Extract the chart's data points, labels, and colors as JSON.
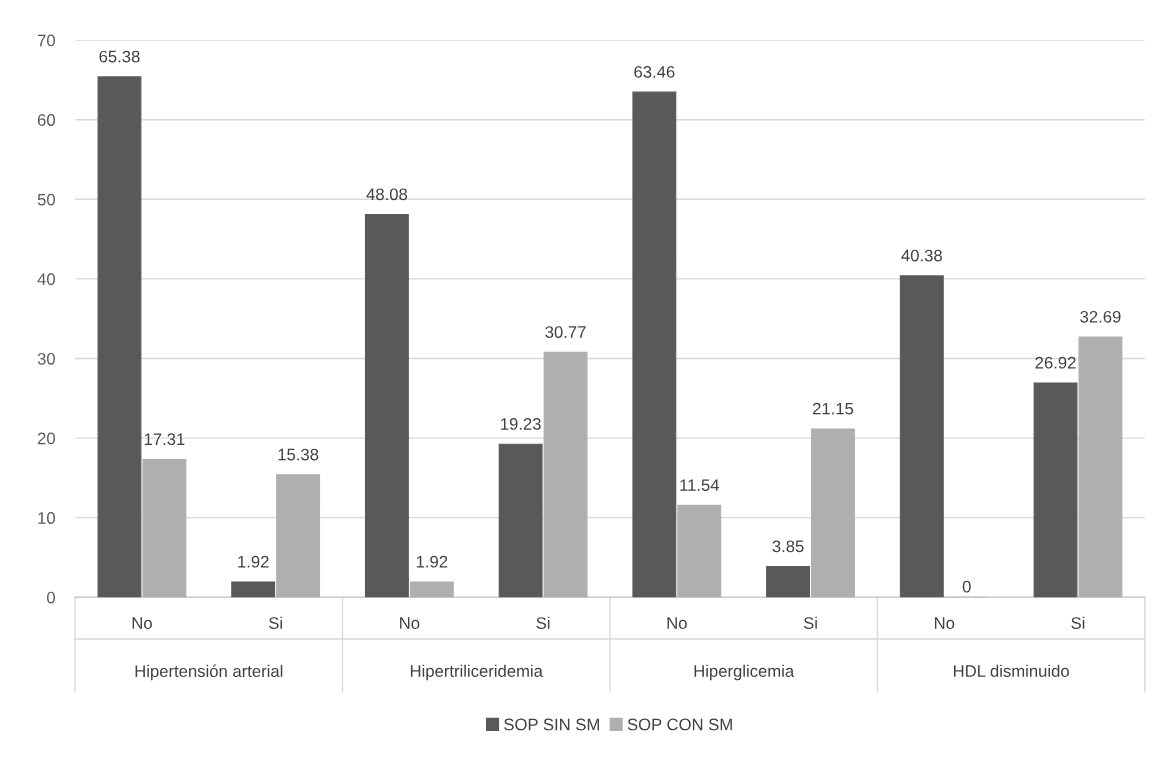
{
  "chart_data": {
    "type": "bar",
    "categories": [
      "No",
      "Si",
      "No",
      "Si",
      "No",
      "Si",
      "No",
      "Si"
    ],
    "series": [
      {
        "name": "SOP SIN SM",
        "color": "#595959",
        "values": [
          65.38,
          1.92,
          48.08,
          19.23,
          63.46,
          3.85,
          40.38,
          26.92
        ]
      },
      {
        "name": "SOP CON SM",
        "color": "#afafaf",
        "values": [
          17.31,
          15.38,
          1.92,
          30.77,
          11.54,
          21.15,
          0,
          32.69
        ]
      }
    ],
    "annotations": [
      "Hipertensión arterial",
      "Hipertriliceridemia",
      "Hiperglicemia",
      "HDL disminuido"
    ],
    "ylim": [
      0,
      70
    ],
    "yticks": [
      0,
      10,
      20,
      30,
      40,
      50,
      60,
      70
    ],
    "grid": "y",
    "legend": "bottom",
    "data_labels": true
  }
}
